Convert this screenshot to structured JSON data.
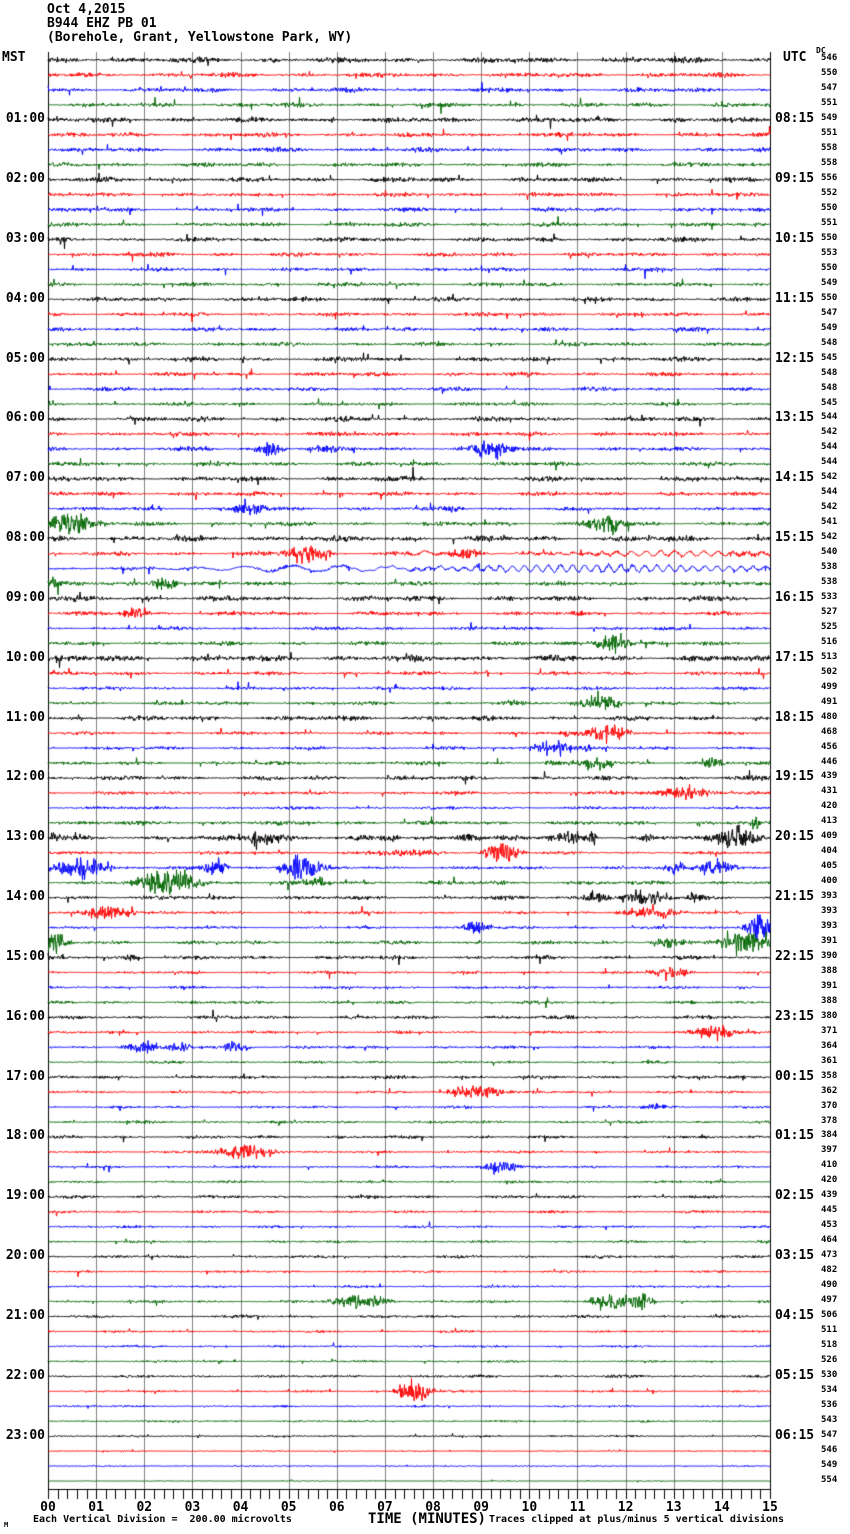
{
  "header": {
    "date": "Oct 4,2015",
    "station": "B944 EHZ PB 01",
    "location": "(Borehole, Grant, Yellowstone Park, WY)",
    "left_tz": "MST",
    "right_tz": "UTC",
    "dc_label": "DC"
  },
  "footer": {
    "left": "Each Vertical Division =  200.00 microvolts",
    "axis_title": "TIME (MINUTES)",
    "right": "Traces clipped at plus/minus 5 vertical divisions",
    "corner": "M"
  },
  "chart_data": {
    "type": "line",
    "subtype": "helicorder-seismogram",
    "title": "B944 EHZ PB 01 — Oct 4,2015",
    "xlabel": "TIME (MINUTES)",
    "x_range": [
      0,
      15
    ],
    "x_ticks": [
      "00",
      "01",
      "02",
      "03",
      "04",
      "05",
      "06",
      "07",
      "08",
      "09",
      "10",
      "11",
      "12",
      "13",
      "14",
      "15"
    ],
    "minutes_per_line": 15,
    "lines": 96,
    "start_time_mst": "00:00",
    "vertical_division_microvolts": 200.0,
    "clip_divisions": 5,
    "trace_color_cycle": [
      "#000000",
      "#ff0000",
      "#0000ff",
      "#006600"
    ],
    "grid_color": "#808080",
    "border_color": "#000000",
    "mst_labels": [
      "01:00",
      "02:00",
      "03:00",
      "04:00",
      "05:00",
      "06:00",
      "07:00",
      "08:00",
      "09:00",
      "10:00",
      "11:00",
      "12:00",
      "13:00",
      "14:00",
      "15:00",
      "16:00",
      "17:00",
      "18:00",
      "19:00",
      "20:00",
      "21:00",
      "22:00",
      "23:00"
    ],
    "utc_labels": [
      "08:15",
      "09:15",
      "10:15",
      "11:15",
      "12:15",
      "13:15",
      "14:15",
      "15:15",
      "16:15",
      "17:15",
      "18:15",
      "19:15",
      "20:15",
      "21:15",
      "22:15",
      "23:15",
      "00:15",
      "01:15",
      "02:15",
      "03:15",
      "04:15",
      "05:15",
      "06:15"
    ],
    "dc_values": [
      546,
      550,
      547,
      551,
      549,
      551,
      558,
      558,
      556,
      552,
      550,
      551,
      550,
      553,
      550,
      549,
      550,
      547,
      549,
      548,
      545,
      548,
      548,
      545,
      544,
      542,
      544,
      544,
      542,
      544,
      542,
      541,
      542,
      540,
      538,
      538,
      533,
      527,
      525,
      516,
      513,
      502,
      499,
      491,
      480,
      468,
      456,
      446,
      439,
      431,
      420,
      413,
      409,
      404,
      405,
      400,
      393,
      393,
      393,
      391,
      390,
      388,
      391,
      388,
      380,
      371,
      364,
      361,
      358,
      362,
      370,
      378,
      384,
      397,
      410,
      420,
      439,
      445,
      453,
      464,
      473,
      482,
      490,
      497,
      506,
      511,
      518,
      526,
      530,
      534,
      536,
      543,
      547,
      546,
      549,
      554
    ],
    "rows": [
      [
        2.0
      ],
      [
        1.7
      ],
      [
        1.7
      ],
      [
        1.6
      ],
      [
        1.8
      ],
      [
        1.6
      ],
      [
        1.6
      ],
      [
        1.5
      ],
      [
        1.7
      ],
      [
        1.5
      ],
      [
        1.5
      ],
      [
        1.5
      ],
      [
        1.6
      ],
      [
        1.5
      ],
      [
        1.4
      ],
      [
        1.4
      ],
      [
        1.6
      ],
      [
        1.4
      ],
      [
        1.4
      ],
      [
        1.4
      ],
      [
        1.6
      ],
      [
        1.4
      ],
      [
        1.4
      ],
      [
        1.3
      ],
      [
        1.7
      ],
      [
        1.5
      ],
      [
        1.4,
        [
          [
            4.6,
            0.5,
            4
          ],
          [
            5.8,
            0.7,
            2
          ],
          [
            9.2,
            0.8,
            4
          ]
        ]
      ],
      [
        1.5
      ],
      [
        1.8
      ],
      [
        1.5
      ],
      [
        1.3,
        [
          [
            4.2,
            0.8,
            3
          ],
          [
            8.4,
            0.4,
            2
          ]
        ]
      ],
      [
        1.5,
        [
          [
            0.5,
            0.9,
            6
          ],
          [
            11.6,
            0.7,
            5
          ]
        ]
      ],
      [
        2.0
      ],
      [
        1.5,
        [
          [
            5.4,
            0.9,
            4
          ],
          [
            7.8,
            0.4,
            3,
            "lp",
            0.5
          ],
          [
            8.7,
            0.6,
            3
          ],
          [
            13.0,
            4.0,
            2.5,
            "lp",
            0.3
          ]
        ]
      ],
      [
        1.2,
        [
          [
            5.5,
            4.5,
            3,
            "lp",
            1.0
          ],
          [
            11.5,
            7.0,
            3.5,
            "lp",
            0.25
          ]
        ]
      ],
      [
        1.5,
        [
          [
            0.1,
            0.3,
            3
          ],
          [
            2.4,
            0.5,
            4
          ]
        ]
      ],
      [
        1.9
      ],
      [
        1.5,
        [
          [
            1.8,
            0.5,
            3
          ]
        ]
      ],
      [
        1.3
      ],
      [
        1.4,
        [
          [
            11.7,
            0.7,
            4
          ]
        ]
      ],
      [
        2.1
      ],
      [
        1.3
      ],
      [
        1.2
      ],
      [
        1.3,
        [
          [
            11.5,
            0.8,
            4
          ]
        ]
      ],
      [
        1.7
      ],
      [
        1.2,
        [
          [
            10.8,
            0.3,
            2
          ],
          [
            11.6,
            0.8,
            5
          ]
        ]
      ],
      [
        1.2,
        [
          [
            10.5,
            0.7,
            4
          ],
          [
            11.2,
            0.3,
            2
          ]
        ]
      ],
      [
        1.3,
        [
          [
            10.5,
            0.3,
            2
          ],
          [
            11.4,
            0.7,
            3
          ],
          [
            13.8,
            0.4,
            3
          ]
        ]
      ],
      [
        1.6
      ],
      [
        1.2,
        [
          [
            13.2,
            1.2,
            3
          ]
        ]
      ],
      [
        1.1
      ],
      [
        1.5,
        [
          [
            14.7,
            0.2,
            4
          ]
        ]
      ],
      [
        1.7,
        [
          [
            0.15,
            0.2,
            3
          ],
          [
            4.3,
            0.15,
            5
          ],
          [
            4.6,
            0.9,
            3
          ],
          [
            7.1,
            0.3,
            2
          ],
          [
            8.7,
            0.6,
            2
          ],
          [
            10.8,
            0.7,
            3
          ],
          [
            11.3,
            0.15,
            5
          ],
          [
            12.5,
            0.3,
            2
          ],
          [
            14.3,
            0.8,
            6
          ]
        ]
      ],
      [
        1.1,
        [
          [
            7.5,
            1.5,
            1.5
          ],
          [
            9.4,
            0.6,
            6
          ]
        ]
      ],
      [
        1.2,
        [
          [
            0.7,
            1.0,
            6
          ],
          [
            3.5,
            0.4,
            5
          ],
          [
            5.3,
            0.7,
            7
          ],
          [
            13.1,
            0.4,
            3
          ],
          [
            13.9,
            0.7,
            4
          ]
        ]
      ],
      [
        1.5,
        [
          [
            2.5,
            1.1,
            7
          ],
          [
            5.6,
            0.5,
            3
          ]
        ]
      ],
      [
        1.5,
        [
          [
            11.4,
            0.5,
            3
          ],
          [
            12.4,
            0.8,
            4
          ],
          [
            13.5,
            0.4,
            3
          ]
        ]
      ],
      [
        1.1,
        [
          [
            1.3,
            0.9,
            4
          ],
          [
            12.5,
            1.1,
            3
          ]
        ]
      ],
      [
        1.0,
        [
          [
            8.9,
            0.6,
            3
          ],
          [
            14.8,
            0.5,
            7
          ]
        ]
      ],
      [
        1.3,
        [
          [
            0.15,
            0.5,
            5
          ],
          [
            12.9,
            0.6,
            3
          ],
          [
            14.5,
            1.0,
            6
          ]
        ]
      ],
      [
        1.4,
        [
          [
            1.7,
            0.4,
            2
          ]
        ]
      ],
      [
        1.0,
        [
          [
            12.9,
            0.7,
            3
          ]
        ]
      ],
      [
        1.0
      ],
      [
        1.1
      ],
      [
        1.3
      ],
      [
        1.0,
        [
          [
            13.9,
            0.8,
            4
          ]
        ]
      ],
      [
        1.0,
        [
          [
            1.9,
            0.6,
            3
          ],
          [
            2.7,
            0.5,
            3
          ],
          [
            3.9,
            0.5,
            3
          ]
        ]
      ],
      [
        1.0
      ],
      [
        1.2
      ],
      [
        0.9,
        [
          [
            8.9,
            0.9,
            4
          ]
        ]
      ],
      [
        0.9,
        [
          [
            12.6,
            0.5,
            2
          ]
        ]
      ],
      [
        1.0
      ],
      [
        1.1
      ],
      [
        0.9,
        [
          [
            4.1,
            1.1,
            4
          ]
        ]
      ],
      [
        0.9,
        [
          [
            9.4,
            0.7,
            3
          ]
        ]
      ],
      [
        0.9
      ],
      [
        1.1
      ],
      [
        0.9
      ],
      [
        0.9
      ],
      [
        0.9
      ],
      [
        1.0
      ],
      [
        0.8
      ],
      [
        0.8
      ],
      [
        1.0,
        [
          [
            6.5,
            1.0,
            4
          ],
          [
            11.7,
            0.7,
            4
          ],
          [
            12.3,
            0.5,
            4
          ]
        ]
      ],
      [
        1.0
      ],
      [
        0.8
      ],
      [
        0.8
      ],
      [
        0.8
      ],
      [
        1.0
      ],
      [
        0.8,
        [
          [
            7.6,
            0.6,
            6
          ]
        ]
      ],
      [
        0.7
      ],
      [
        0.7
      ],
      [
        0.7
      ],
      [
        0.5
      ],
      [
        0.5
      ],
      [
        0.35
      ]
    ]
  }
}
